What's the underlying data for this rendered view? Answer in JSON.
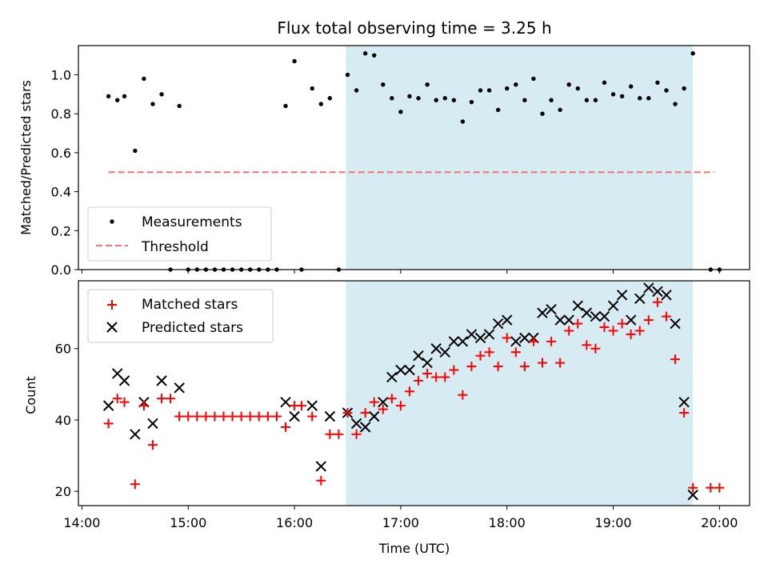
{
  "chart_data": [
    {
      "type": "scatter",
      "title": "Flux total observing time = 3.25 h",
      "ylabel": "Matched/Predicted stars",
      "xlim": [
        "13:58",
        "20:17"
      ],
      "ylim": [
        0,
        1.15
      ],
      "yticks": [
        "0.0",
        "0.2",
        "0.4",
        "0.6",
        "0.8",
        "1.0"
      ],
      "shaded_region": [
        "16:29",
        "19:45"
      ],
      "legend": {
        "position": "lower-left",
        "entries": [
          "Measurements",
          "Threshold"
        ]
      },
      "threshold": {
        "name": "Threshold",
        "y": 0.5,
        "x_range": [
          "14:15",
          "19:57"
        ],
        "color": "#f08080"
      },
      "series": [
        {
          "name": "Measurements",
          "color": "#000000",
          "points": [
            [
              "14:15",
              0.89
            ],
            [
              "14:20",
              0.87
            ],
            [
              "14:24",
              0.89
            ],
            [
              "14:30",
              0.61
            ],
            [
              "14:35",
              0.98
            ],
            [
              "14:40",
              0.85
            ],
            [
              "14:45",
              0.9
            ],
            [
              "14:50",
              0.0
            ],
            [
              "14:55",
              0.84
            ],
            [
              "15:00",
              0.0
            ],
            [
              "15:05",
              0.0
            ],
            [
              "15:10",
              0.0
            ],
            [
              "15:15",
              0.0
            ],
            [
              "15:20",
              0.0
            ],
            [
              "15:25",
              0.0
            ],
            [
              "15:30",
              0.0
            ],
            [
              "15:35",
              0.0
            ],
            [
              "15:40",
              0.0
            ],
            [
              "15:45",
              0.0
            ],
            [
              "15:50",
              0.0
            ],
            [
              "15:55",
              0.84
            ],
            [
              "16:00",
              1.07
            ],
            [
              "16:04",
              0.0
            ],
            [
              "16:10",
              0.93
            ],
            [
              "16:15",
              0.85
            ],
            [
              "16:20",
              0.88
            ],
            [
              "16:25",
              0.0
            ],
            [
              "16:30",
              1.0
            ],
            [
              "16:35",
              0.92
            ],
            [
              "16:40",
              1.11
            ],
            [
              "16:45",
              1.1
            ],
            [
              "16:50",
              0.95
            ],
            [
              "16:55",
              0.88
            ],
            [
              "17:00",
              0.81
            ],
            [
              "17:05",
              0.89
            ],
            [
              "17:10",
              0.88
            ],
            [
              "17:15",
              0.95
            ],
            [
              "17:20",
              0.87
            ],
            [
              "17:25",
              0.88
            ],
            [
              "17:30",
              0.87
            ],
            [
              "17:35",
              0.76
            ],
            [
              "17:40",
              0.86
            ],
            [
              "17:45",
              0.92
            ],
            [
              "17:50",
              0.92
            ],
            [
              "17:55",
              0.82
            ],
            [
              "18:00",
              0.93
            ],
            [
              "18:05",
              0.95
            ],
            [
              "18:10",
              0.87
            ],
            [
              "18:15",
              0.98
            ],
            [
              "18:20",
              0.8
            ],
            [
              "18:25",
              0.87
            ],
            [
              "18:30",
              0.82
            ],
            [
              "18:35",
              0.95
            ],
            [
              "18:40",
              0.93
            ],
            [
              "18:45",
              0.87
            ],
            [
              "18:50",
              0.87
            ],
            [
              "18:55",
              0.96
            ],
            [
              "19:00",
              0.9
            ],
            [
              "19:05",
              0.89
            ],
            [
              "19:10",
              0.94
            ],
            [
              "19:15",
              0.88
            ],
            [
              "19:20",
              0.88
            ],
            [
              "19:25",
              0.96
            ],
            [
              "19:30",
              0.92
            ],
            [
              "19:35",
              0.85
            ],
            [
              "19:40",
              0.93
            ],
            [
              "19:45",
              1.11
            ],
            [
              "19:55",
              0.0
            ],
            [
              "20:00",
              0.0
            ]
          ]
        }
      ]
    },
    {
      "type": "scatter",
      "xlabel": "Time (UTC)",
      "ylabel": "Count",
      "xlim": [
        "13:58",
        "20:17"
      ],
      "xticks": [
        "14:00",
        "15:00",
        "16:00",
        "17:00",
        "18:00",
        "19:00",
        "20:00"
      ],
      "ylim": [
        16,
        79
      ],
      "yticks": [
        "20",
        "40",
        "60"
      ],
      "shaded_region": [
        "16:29",
        "19:45"
      ],
      "legend": {
        "position": "top-left",
        "entries": [
          "Matched stars",
          "Predicted stars"
        ]
      },
      "series": [
        {
          "name": "Matched stars",
          "marker": "+",
          "color": "#ff0000",
          "points": [
            [
              "14:15",
              39
            ],
            [
              "14:20",
              46
            ],
            [
              "14:24",
              45
            ],
            [
              "14:30",
              22
            ],
            [
              "14:35",
              44
            ],
            [
              "14:40",
              33
            ],
            [
              "14:45",
              46
            ],
            [
              "14:50",
              46
            ],
            [
              "14:55",
              41
            ],
            [
              "15:00",
              41
            ],
            [
              "15:05",
              41
            ],
            [
              "15:10",
              41
            ],
            [
              "15:15",
              41
            ],
            [
              "15:20",
              41
            ],
            [
              "15:25",
              41
            ],
            [
              "15:30",
              41
            ],
            [
              "15:35",
              41
            ],
            [
              "15:40",
              41
            ],
            [
              "15:45",
              41
            ],
            [
              "15:50",
              41
            ],
            [
              "15:55",
              38
            ],
            [
              "16:00",
              44
            ],
            [
              "16:04",
              44
            ],
            [
              "16:10",
              41
            ],
            [
              "16:15",
              23
            ],
            [
              "16:20",
              36
            ],
            [
              "16:25",
              36
            ],
            [
              "16:30",
              42
            ],
            [
              "16:35",
              36
            ],
            [
              "16:40",
              42
            ],
            [
              "16:45",
              45
            ],
            [
              "16:50",
              43
            ],
            [
              "16:55",
              46
            ],
            [
              "17:00",
              44
            ],
            [
              "17:05",
              48
            ],
            [
              "17:10",
              51
            ],
            [
              "17:15",
              53
            ],
            [
              "17:20",
              52
            ],
            [
              "17:25",
              52
            ],
            [
              "17:30",
              54
            ],
            [
              "17:35",
              47
            ],
            [
              "17:40",
              55
            ],
            [
              "17:45",
              58
            ],
            [
              "17:50",
              59
            ],
            [
              "17:55",
              55
            ],
            [
              "18:00",
              63
            ],
            [
              "18:05",
              59
            ],
            [
              "18:10",
              55
            ],
            [
              "18:15",
              62
            ],
            [
              "18:20",
              56
            ],
            [
              "18:25",
              62
            ],
            [
              "18:30",
              56
            ],
            [
              "18:35",
              65
            ],
            [
              "18:40",
              67
            ],
            [
              "18:45",
              61
            ],
            [
              "18:50",
              60
            ],
            [
              "18:55",
              66
            ],
            [
              "19:00",
              65
            ],
            [
              "19:05",
              67
            ],
            [
              "19:10",
              64
            ],
            [
              "19:15",
              65
            ],
            [
              "19:20",
              68
            ],
            [
              "19:25",
              73
            ],
            [
              "19:30",
              69
            ],
            [
              "19:35",
              57
            ],
            [
              "19:40",
              42
            ],
            [
              "19:45",
              21
            ],
            [
              "19:55",
              21
            ],
            [
              "20:00",
              21
            ]
          ]
        },
        {
          "name": "Predicted stars",
          "marker": "x",
          "color": "#000000",
          "points": [
            [
              "14:15",
              44
            ],
            [
              "14:20",
              53
            ],
            [
              "14:24",
              51
            ],
            [
              "14:30",
              36
            ],
            [
              "14:35",
              45
            ],
            [
              "14:40",
              39
            ],
            [
              "14:45",
              51
            ],
            [
              "14:55",
              49
            ],
            [
              "15:55",
              45
            ],
            [
              "16:00",
              41
            ],
            [
              "16:10",
              44
            ],
            [
              "16:15",
              27
            ],
            [
              "16:20",
              41
            ],
            [
              "16:30",
              42
            ],
            [
              "16:35",
              39
            ],
            [
              "16:40",
              38
            ],
            [
              "16:45",
              41
            ],
            [
              "16:50",
              45
            ],
            [
              "16:55",
              52
            ],
            [
              "17:00",
              54
            ],
            [
              "17:05",
              54
            ],
            [
              "17:10",
              58
            ],
            [
              "17:15",
              56
            ],
            [
              "17:20",
              60
            ],
            [
              "17:25",
              59
            ],
            [
              "17:30",
              62
            ],
            [
              "17:35",
              62
            ],
            [
              "17:40",
              64
            ],
            [
              "17:45",
              63
            ],
            [
              "17:50",
              64
            ],
            [
              "17:55",
              67
            ],
            [
              "18:00",
              68
            ],
            [
              "18:05",
              62
            ],
            [
              "18:10",
              63
            ],
            [
              "18:15",
              63
            ],
            [
              "18:20",
              70
            ],
            [
              "18:25",
              71
            ],
            [
              "18:30",
              68
            ],
            [
              "18:35",
              68
            ],
            [
              "18:40",
              72
            ],
            [
              "18:45",
              70
            ],
            [
              "18:50",
              69
            ],
            [
              "18:55",
              69
            ],
            [
              "19:00",
              72
            ],
            [
              "19:05",
              75
            ],
            [
              "19:10",
              68
            ],
            [
              "19:15",
              74
            ],
            [
              "19:20",
              77
            ],
            [
              "19:25",
              76
            ],
            [
              "19:30",
              75
            ],
            [
              "19:35",
              67
            ],
            [
              "19:40",
              45
            ],
            [
              "19:45",
              19
            ]
          ]
        }
      ]
    }
  ]
}
